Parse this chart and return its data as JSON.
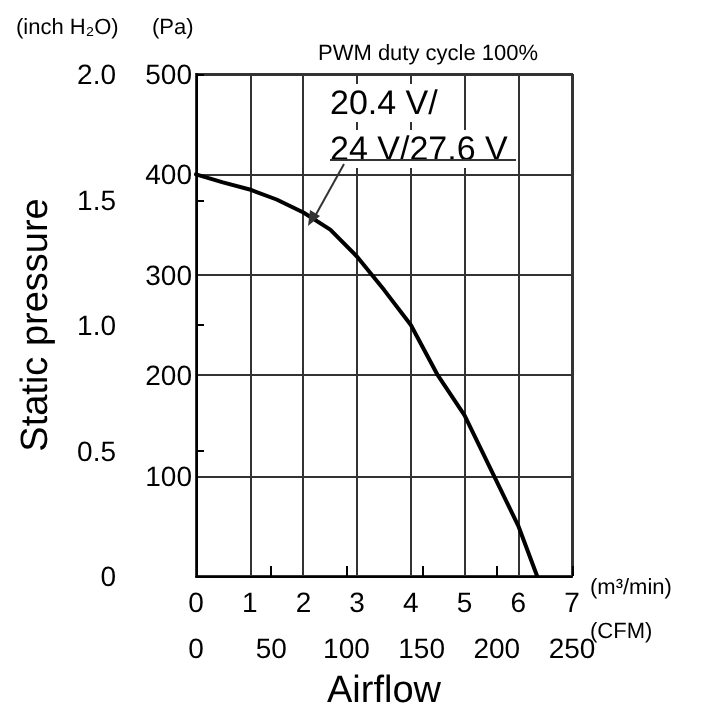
{
  "chart_data": {
    "type": "line",
    "xlabel": "Airflow",
    "y2label": "Static pressure",
    "annotations": [
      "(inch H₂O)",
      "(Pa)",
      "(m³/min)",
      "(CFM)",
      "PWM duty cycle 100%"
    ],
    "series": [
      {
        "name": "20.4 V/\n24 V/27.6 V",
        "color": "#000000",
        "x": [
          0,
          0.5,
          1,
          1.5,
          2,
          2.5,
          3,
          3.5,
          4,
          4.5,
          5,
          5.5,
          6,
          6.35
        ],
        "values": [
          400,
          392,
          385,
          375,
          362,
          345,
          318,
          285,
          250,
          200,
          160,
          105,
          50,
          0
        ]
      }
    ],
    "xlim": [
      0,
      7
    ],
    "xticks": [
      0,
      1,
      2,
      3,
      4,
      5,
      6,
      7
    ],
    "x2lim": [
      0,
      250
    ],
    "x2ticks": [
      0,
      50,
      100,
      150,
      200,
      250
    ],
    "ylim": [
      0,
      500
    ],
    "yticks": [
      {
        "value": 0,
        "label": null
      },
      100,
      200,
      300,
      400,
      500
    ],
    "y2lim": [
      0,
      2
    ],
    "y2ticks": [
      0,
      0.5,
      {
        "value": 1,
        "label": "1.0"
      },
      1.5,
      {
        "value": 2,
        "label": "2.0"
      }
    ],
    "grid": true,
    "legend": false,
    "marker": "none",
    "line_style": "solid"
  }
}
